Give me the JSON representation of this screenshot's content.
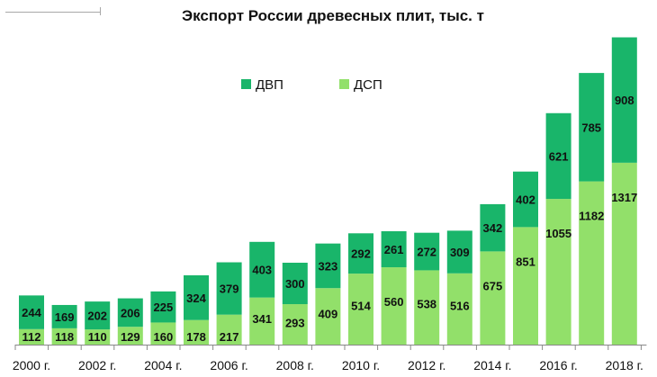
{
  "chart_data": {
    "type": "bar",
    "stacked": true,
    "title": "Экспорт России древесных плит, тыс. т",
    "xlabel": "",
    "ylabel": "",
    "ylim": [
      0,
      2300
    ],
    "grid": false,
    "legend_position": "top-left",
    "categories": [
      "2000 г.",
      "2001 г.",
      "2002 г.",
      "2003 г.",
      "2004 г.",
      "2005 г.",
      "2006 г.",
      "2007 г.",
      "2008 г.",
      "2009 г.",
      "2010 г.",
      "2011 г.",
      "2012 г.",
      "2013 г.",
      "2014 г.",
      "2015 г.",
      "2016 г.",
      "2017 г.",
      "2018 г."
    ],
    "visible_tick_labels": [
      "2000 г.",
      "2002 г.",
      "2004 г.",
      "2006 г.",
      "2008 г.",
      "2010 г.",
      "2012 г.",
      "2014 г.",
      "2016 г.",
      "2018 г."
    ],
    "series": [
      {
        "name": "ДСП",
        "color": "#92e06a",
        "values": [
          112,
          118,
          110,
          129,
          160,
          178,
          217,
          341,
          293,
          409,
          514,
          560,
          538,
          516,
          675,
          851,
          1055,
          1182,
          1317
        ]
      },
      {
        "name": "ДВП",
        "color": "#19b56a",
        "values": [
          244,
          169,
          202,
          206,
          225,
          324,
          379,
          403,
          300,
          323,
          292,
          261,
          272,
          309,
          342,
          402,
          621,
          785,
          908
        ]
      }
    ],
    "legend": [
      {
        "name": "ДВП",
        "color": "#19b56a"
      },
      {
        "name": "ДСП",
        "color": "#92e06a"
      }
    ]
  }
}
